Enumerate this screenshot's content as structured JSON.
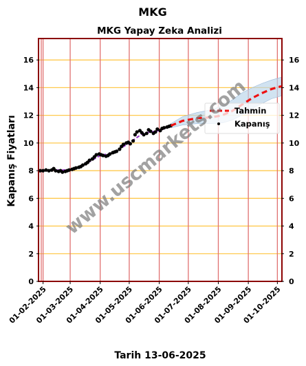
{
  "chart_data": {
    "type": "line",
    "title": "MKG",
    "subtitle": "MKG Yapay Zeka Analizi",
    "xlabel": "Tarih 13-06-2025",
    "ylabel": "Kapanış Fiyatları",
    "watermark": "www.uscmarkets.com",
    "xlim": [
      "2025-01-28",
      "2025-10-05"
    ],
    "ylim": [
      0,
      17.5
    ],
    "yticks": [
      0,
      2,
      4,
      6,
      8,
      10,
      12,
      14,
      16
    ],
    "xtick_labels": [
      "01-02-2025",
      "01-03-2025",
      "01-04-2025",
      "01-05-2025",
      "01-06-2025",
      "01-07-2025",
      "01-08-2025",
      "01-09-2025",
      "01-10-2025"
    ],
    "xticks": [
      "2025-02-01",
      "2025-03-01",
      "2025-04-01",
      "2025-05-01",
      "2025-06-01",
      "2025-07-01",
      "2025-08-01",
      "2025-09-01",
      "2025-10-01"
    ],
    "grid": true,
    "legend_position": "center-right",
    "colors": {
      "kapanis": "#000000",
      "tahmin": "#ee1111",
      "trend": "#9933cc",
      "band": "#b8d4ea",
      "hgrid": "#ffc94d",
      "vgrid": "#e07070",
      "frame": "#8b0000"
    },
    "series": [
      {
        "name": "Kapanış",
        "kind": "scatter",
        "points": [
          [
            "2025-01-29",
            8.0
          ],
          [
            "2025-02-01",
            8.0
          ],
          [
            "2025-02-04",
            8.05
          ],
          [
            "2025-02-07",
            8.0
          ],
          [
            "2025-02-10",
            8.05
          ],
          [
            "2025-02-12",
            8.15
          ],
          [
            "2025-02-14",
            8.0
          ],
          [
            "2025-02-17",
            7.95
          ],
          [
            "2025-02-19",
            8.0
          ],
          [
            "2025-02-21",
            7.9
          ],
          [
            "2025-02-24",
            7.95
          ],
          [
            "2025-02-26",
            8.0
          ],
          [
            "2025-02-28",
            8.05
          ],
          [
            "2025-03-03",
            8.1
          ],
          [
            "2025-03-05",
            8.15
          ],
          [
            "2025-03-07",
            8.2
          ],
          [
            "2025-03-10",
            8.25
          ],
          [
            "2025-03-12",
            8.3
          ],
          [
            "2025-03-14",
            8.4
          ],
          [
            "2025-03-17",
            8.5
          ],
          [
            "2025-03-19",
            8.6
          ],
          [
            "2025-03-21",
            8.75
          ],
          [
            "2025-03-24",
            8.85
          ],
          [
            "2025-03-26",
            9.0
          ],
          [
            "2025-03-28",
            9.15
          ],
          [
            "2025-03-31",
            9.2
          ],
          [
            "2025-04-02",
            9.15
          ],
          [
            "2025-04-04",
            9.1
          ],
          [
            "2025-04-07",
            9.05
          ],
          [
            "2025-04-09",
            9.1
          ],
          [
            "2025-04-11",
            9.2
          ],
          [
            "2025-04-14",
            9.3
          ],
          [
            "2025-04-16",
            9.35
          ],
          [
            "2025-04-18",
            9.4
          ],
          [
            "2025-04-21",
            9.55
          ],
          [
            "2025-04-23",
            9.75
          ],
          [
            "2025-04-25",
            9.9
          ],
          [
            "2025-04-28",
            10.0
          ],
          [
            "2025-04-30",
            10.05
          ],
          [
            "2025-05-02",
            9.95
          ],
          [
            "2025-05-05",
            10.15
          ],
          [
            "2025-05-07",
            10.6
          ],
          [
            "2025-05-09",
            10.8
          ],
          [
            "2025-05-12",
            10.9
          ],
          [
            "2025-05-14",
            10.75
          ],
          [
            "2025-05-16",
            10.6
          ],
          [
            "2025-05-19",
            10.7
          ],
          [
            "2025-05-21",
            10.95
          ],
          [
            "2025-05-23",
            10.85
          ],
          [
            "2025-05-26",
            10.7
          ],
          [
            "2025-05-28",
            10.8
          ],
          [
            "2025-05-30",
            11.0
          ],
          [
            "2025-06-02",
            10.9
          ],
          [
            "2025-06-04",
            11.05
          ],
          [
            "2025-06-06",
            11.1
          ],
          [
            "2025-06-09",
            11.15
          ],
          [
            "2025-06-11",
            11.2
          ],
          [
            "2025-06-13",
            11.25
          ]
        ]
      },
      {
        "name": "Tahmin",
        "kind": "dashed-line",
        "points": [
          [
            "2025-06-13",
            11.25
          ],
          [
            "2025-06-25",
            11.6
          ],
          [
            "2025-07-10",
            11.8
          ],
          [
            "2025-07-25",
            11.85
          ],
          [
            "2025-08-05",
            12.0
          ],
          [
            "2025-08-15",
            12.3
          ],
          [
            "2025-08-25",
            12.75
          ],
          [
            "2025-09-05",
            13.25
          ],
          [
            "2025-09-15",
            13.6
          ],
          [
            "2025-09-25",
            13.9
          ],
          [
            "2025-10-05",
            14.1
          ]
        ],
        "band_upper": [
          11.4,
          11.9,
          12.2,
          12.4,
          12.7,
          13.1,
          13.6,
          14.0,
          14.3,
          14.55,
          14.75
        ],
        "band_lower": [
          11.1,
          11.3,
          11.4,
          11.4,
          11.45,
          11.65,
          12.0,
          12.5,
          12.85,
          13.2,
          13.4
        ]
      },
      {
        "kind": "trend-line",
        "points": [
          [
            "2025-01-29",
            8.0
          ],
          [
            "2025-02-15",
            8.05
          ],
          [
            "2025-03-01",
            8.05
          ],
          [
            "2025-03-15",
            8.4
          ],
          [
            "2025-04-01",
            9.1
          ],
          [
            "2025-04-15",
            9.3
          ],
          [
            "2025-05-01",
            10.0
          ],
          [
            "2025-05-15",
            10.7
          ],
          [
            "2025-06-01",
            10.9
          ],
          [
            "2025-06-13",
            11.2
          ]
        ]
      }
    ]
  }
}
